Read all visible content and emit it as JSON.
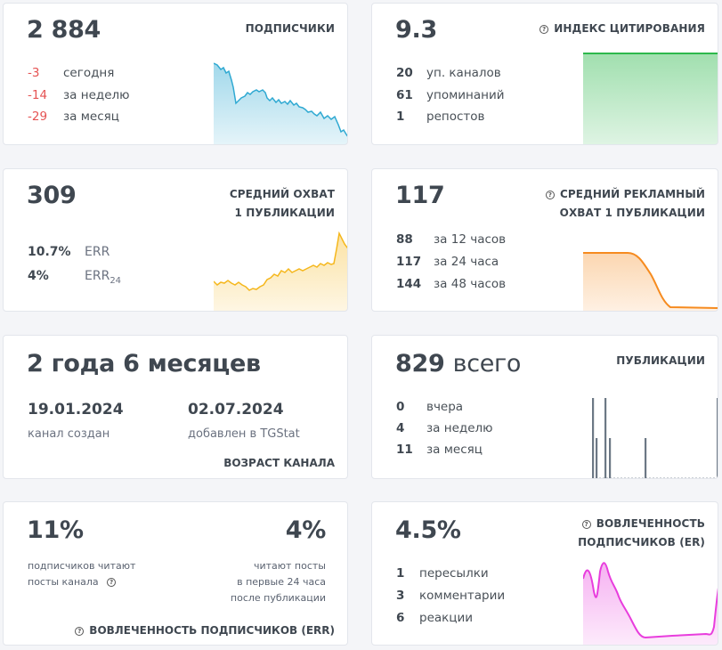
{
  "subscribers": {
    "value": "2 884",
    "title": "ПОДПИСЧИКИ",
    "rows": [
      {
        "num": "-3",
        "label": "сегодня"
      },
      {
        "num": "-14",
        "label": "за неделю"
      },
      {
        "num": "-29",
        "label": "за месяц"
      }
    ],
    "chart_color": "#2fa9d2"
  },
  "citation": {
    "value": "9.3",
    "title": "ИНДЕКС ЦИТИРОВАНИЯ",
    "icon": "info-icon",
    "rows": [
      {
        "num": "20",
        "label": "уп. каналов"
      },
      {
        "num": "61",
        "label": "упоминаний"
      },
      {
        "num": "1",
        "label": "репостов"
      }
    ],
    "chart_color": "#2db84c"
  },
  "reach": {
    "value": "309",
    "title_line1": "СРЕДНИЙ ОХВАТ",
    "title_line2": "1 ПУБЛИКАЦИИ",
    "rows": [
      {
        "num": "10.7%",
        "label": "ERR"
      },
      {
        "num": "4%",
        "label": "ERR",
        "subscript": "24"
      }
    ],
    "chart_color": "#f5b71c"
  },
  "ad_reach": {
    "value": "117",
    "title_line1": "СРЕДНИЙ РЕКЛАМНЫЙ",
    "title_line2": "ОХВАТ 1 ПУБЛИКАЦИИ",
    "icon": "info-icon",
    "rows": [
      {
        "num": "88",
        "label": "за 12 часов"
      },
      {
        "num": "117",
        "label": "за 24 часа"
      },
      {
        "num": "144",
        "label": "за 48 часов"
      }
    ],
    "chart_color": "#f68b1f"
  },
  "age": {
    "value": "2 года 6 месяцев",
    "created_date": "19.01.2024",
    "created_label": "канал создан",
    "added_date": "02.07.2024",
    "added_label": "добавлен в TGStat",
    "title": "ВОЗРАСТ КАНАЛА"
  },
  "publications": {
    "value": "829",
    "value_suffix": "всего",
    "title": "ПУБЛИКАЦИИ",
    "rows": [
      {
        "num": "0",
        "label": "вчера"
      },
      {
        "num": "4",
        "label": "за неделю"
      },
      {
        "num": "11",
        "label": "за месяц"
      }
    ],
    "chart_color": "#6c7885"
  },
  "err": {
    "left_value": "11%",
    "left_line1": "подписчиков читают",
    "left_line2": "посты канала",
    "right_value": "4%",
    "right_line1": "читают посты",
    "right_line2": "в первые 24 часа",
    "right_line3": "после публикации",
    "footer": "ВОВЛЕЧЕННОСТЬ ПОДПИСЧИКОВ (ERR)",
    "icon": "info-icon"
  },
  "er": {
    "value": "4.5%",
    "title_line1": "ВОВЛЕЧЕННОСТЬ",
    "title_line2": "ПОДПИСЧИКОВ (ER)",
    "icon": "info-icon",
    "rows": [
      {
        "num": "1",
        "label": "пересылки"
      },
      {
        "num": "3",
        "label": "комментарии"
      },
      {
        "num": "6",
        "label": "реакции"
      }
    ],
    "chart_color": "#e83ddd"
  }
}
